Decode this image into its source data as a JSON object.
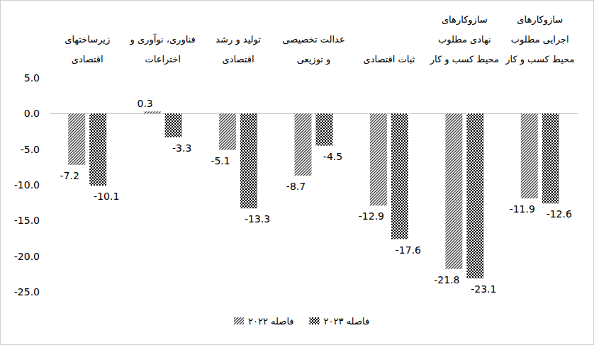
{
  "chart_data": {
    "type": "bar",
    "categories": [
      "زیرساختهای اقتصادی",
      "فناوری، نوآوری و اختراعات",
      "تولید و رشد اقتصادی",
      "عدالت تخصیصی و توزیعی",
      "ثبات اقتصادی",
      "سازوکارهای نهادی مطلوب محیط کسب و کار",
      "سازوکارهای اجرایی مطلوب محیط کسب و کار"
    ],
    "series": [
      {
        "name": "فاصله ۲۰۲۲",
        "color": "#404040",
        "values": [
          -7.2,
          0.3,
          -5.1,
          -8.7,
          -12.9,
          -21.8,
          -11.9
        ]
      },
      {
        "name": "فاصله ۲۰۲۳",
        "color": "#000000",
        "values": [
          -10.1,
          -3.3,
          -13.3,
          -4.5,
          -17.6,
          -23.1,
          -12.6
        ]
      }
    ],
    "ylim": [
      -25,
      5
    ],
    "yticks": [
      {
        "value": 5,
        "label": "5.0"
      },
      {
        "value": 0,
        "label": "0.0"
      },
      {
        "value": -5,
        "label": "-5.0"
      },
      {
        "value": -10,
        "label": "-10.0"
      },
      {
        "value": -15,
        "label": "-15.0"
      },
      {
        "value": -20,
        "label": "-20.0"
      },
      {
        "value": -25,
        "label": "-25.0"
      }
    ],
    "grid": false,
    "data_labels": true,
    "legend": "bottom"
  }
}
